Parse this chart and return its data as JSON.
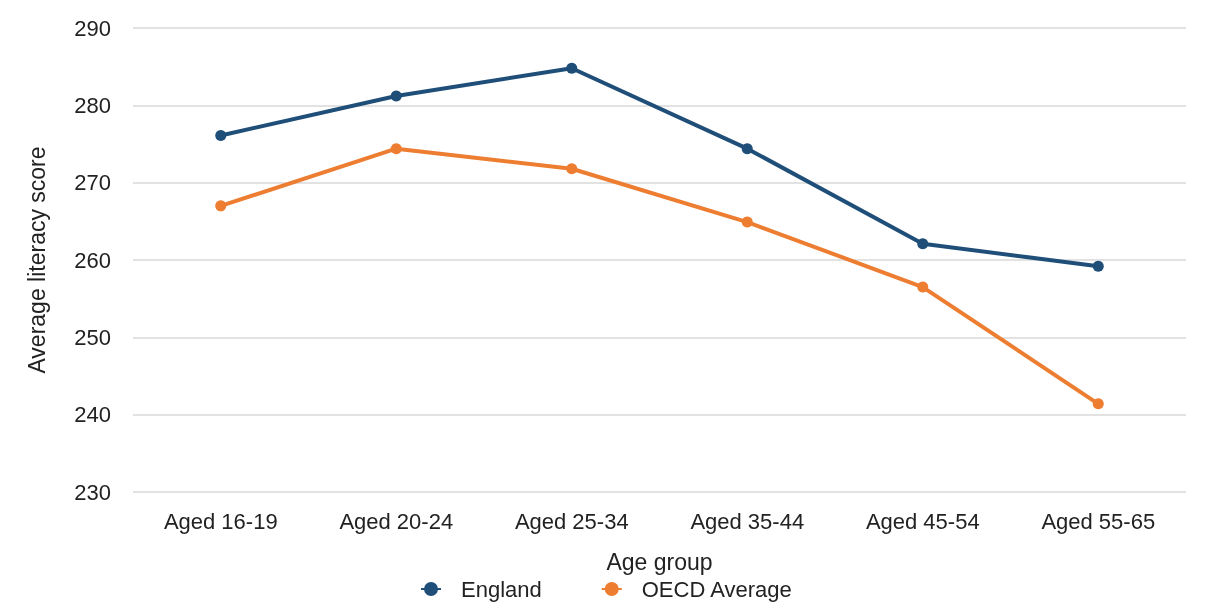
{
  "chart_data": {
    "type": "line",
    "xlabel": "Age group",
    "ylabel": "Average literacy score",
    "categories": [
      "Aged 16-19",
      "Aged 20-24",
      "Aged 25-34",
      "Aged 35-44",
      "Aged 45-54",
      "Aged 55-65"
    ],
    "series": [
      {
        "name": "England",
        "color": "#1f4e79",
        "values": [
          276.1,
          281.2,
          284.8,
          274.4,
          262.1,
          259.2
        ]
      },
      {
        "name": "OECD Average",
        "color": "#ed7d31",
        "values": [
          267,
          274.4,
          271.8,
          264.9,
          256.5,
          241.4
        ]
      }
    ],
    "ylim": [
      230,
      290
    ],
    "yticks": [
      230,
      240,
      250,
      260,
      270,
      280,
      290
    ],
    "grid": "y",
    "legend": "bottom",
    "marker": "circle",
    "line_style": "solid"
  }
}
